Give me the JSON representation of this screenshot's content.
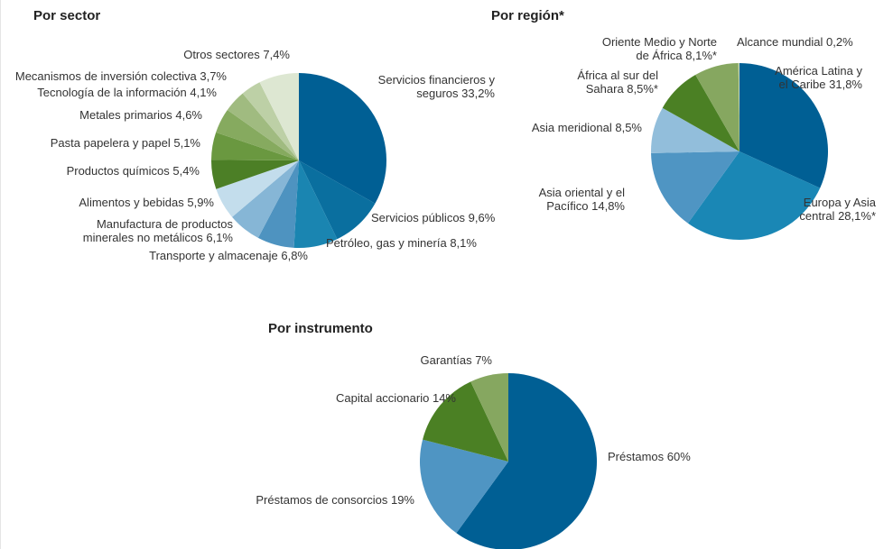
{
  "chart_data": [
    {
      "type": "pie",
      "title": "Por sector",
      "categories": [
        "Servicios financieros y seguros",
        "Servicios públicos",
        "Petróleo, gas y minería",
        "Transporte y almacenaje",
        "Manufactura de productos minerales no metálicos",
        "Alimentos y bebidas",
        "Productos químicos",
        "Pasta papelera y papel",
        "Metales primarios",
        "Tecnología de la información",
        "Mecanismos de inversión colectiva",
        "Otros sectores"
      ],
      "values": [
        33.2,
        9.6,
        8.1,
        6.8,
        6.1,
        5.9,
        5.4,
        5.1,
        4.6,
        4.1,
        3.7,
        7.4
      ],
      "value_labels": [
        "33,2%",
        "9,6%",
        "8,1%",
        "6,8%",
        "6,1%",
        "5,9%",
        "5,4%",
        "5,1%",
        "4,6%",
        "4,1%",
        "3,7%",
        "7,4%"
      ],
      "colors": [
        "#005f94",
        "#0a6f9f",
        "#1a85b1",
        "#4e93c0",
        "#86b6d6",
        "#c3ddec",
        "#4c7f26",
        "#6a9840",
        "#86aa5f",
        "#a0bb80",
        "#bdd0a6",
        "#dde7d2"
      ]
    },
    {
      "type": "pie",
      "title": "Por región*",
      "categories": [
        "América Latina y el Caribe",
        "Europa y Asia central",
        "Asia oriental y el Pacífico",
        "Asia meridional",
        "África al sur del Sahara",
        "Oriente Medio y Norte de África",
        "Alcance mundial"
      ],
      "values": [
        31.8,
        28.1,
        14.8,
        8.5,
        8.5,
        8.1,
        0.2
      ],
      "value_labels": [
        "31,8%",
        "28,1%*",
        "14,8%",
        "8,5%",
        "8,5%*",
        "8,1%*",
        "0,2%"
      ],
      "colors": [
        "#005f94",
        "#1a87b5",
        "#4f95c3",
        "#92bedb",
        "#4b8024",
        "#86a760",
        "#c9d8b6"
      ]
    },
    {
      "type": "pie",
      "title": "Por instrumento",
      "categories": [
        "Préstamos",
        "Préstamos de consorcios",
        "Capital accionario",
        "Garantías"
      ],
      "values": [
        60,
        19,
        14,
        7
      ],
      "value_labels": [
        "60%",
        "19%",
        "14%",
        "7%"
      ],
      "colors": [
        "#005f94",
        "#4f95c3",
        "#4b8024",
        "#86a760"
      ]
    }
  ]
}
